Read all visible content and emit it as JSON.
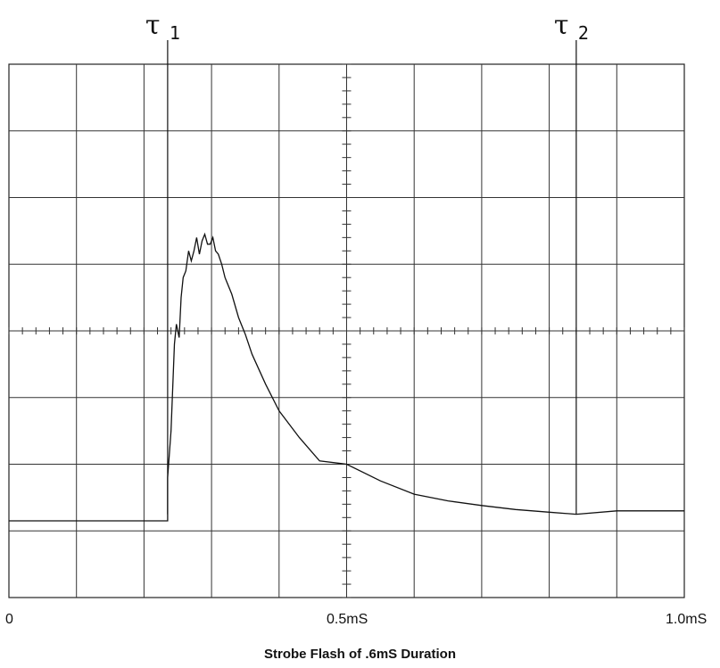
{
  "chart_data": {
    "type": "line",
    "title": "Strobe Flash of .6mS Duration",
    "x_tick_labels": [
      "0",
      "0.5mS",
      "1.0mS"
    ],
    "xlim": [
      0,
      1.0
    ],
    "x_unit": "mS",
    "grid": true,
    "markers": [
      {
        "symbol": "τ",
        "subscript": "1",
        "x": 0.235
      },
      {
        "symbol": "τ",
        "subscript": "2",
        "x": 0.84
      }
    ],
    "series": [
      {
        "x": [
          0,
          0.235,
          0.235,
          0.24,
          0.245,
          0.248,
          0.252,
          0.255,
          0.258,
          0.262,
          0.266,
          0.27,
          0.274,
          0.278,
          0.282,
          0.286,
          0.29,
          0.294,
          0.298,
          0.302,
          0.306,
          0.31,
          0.315,
          0.32,
          0.33,
          0.34,
          0.35,
          0.36,
          0.38,
          0.4,
          0.43,
          0.46,
          0.5,
          0.55,
          0.6,
          0.65,
          0.7,
          0.75,
          0.8,
          0.84,
          0.9,
          0.95,
          1.0
        ],
        "y": [
          -2.85,
          -2.85,
          -2.2,
          -1.5,
          -0.2,
          0.1,
          -0.1,
          0.5,
          0.8,
          0.9,
          1.2,
          1.05,
          1.2,
          1.4,
          1.15,
          1.35,
          1.45,
          1.3,
          1.3,
          1.4,
          1.2,
          1.15,
          1.0,
          0.8,
          0.55,
          0.2,
          -0.05,
          -0.35,
          -0.8,
          -1.2,
          -1.6,
          -1.95,
          -2.0,
          -2.25,
          -2.45,
          -2.55,
          -2.62,
          -2.68,
          -2.72,
          -2.75,
          -2.7,
          -2.7,
          -2.7
        ]
      }
    ]
  }
}
